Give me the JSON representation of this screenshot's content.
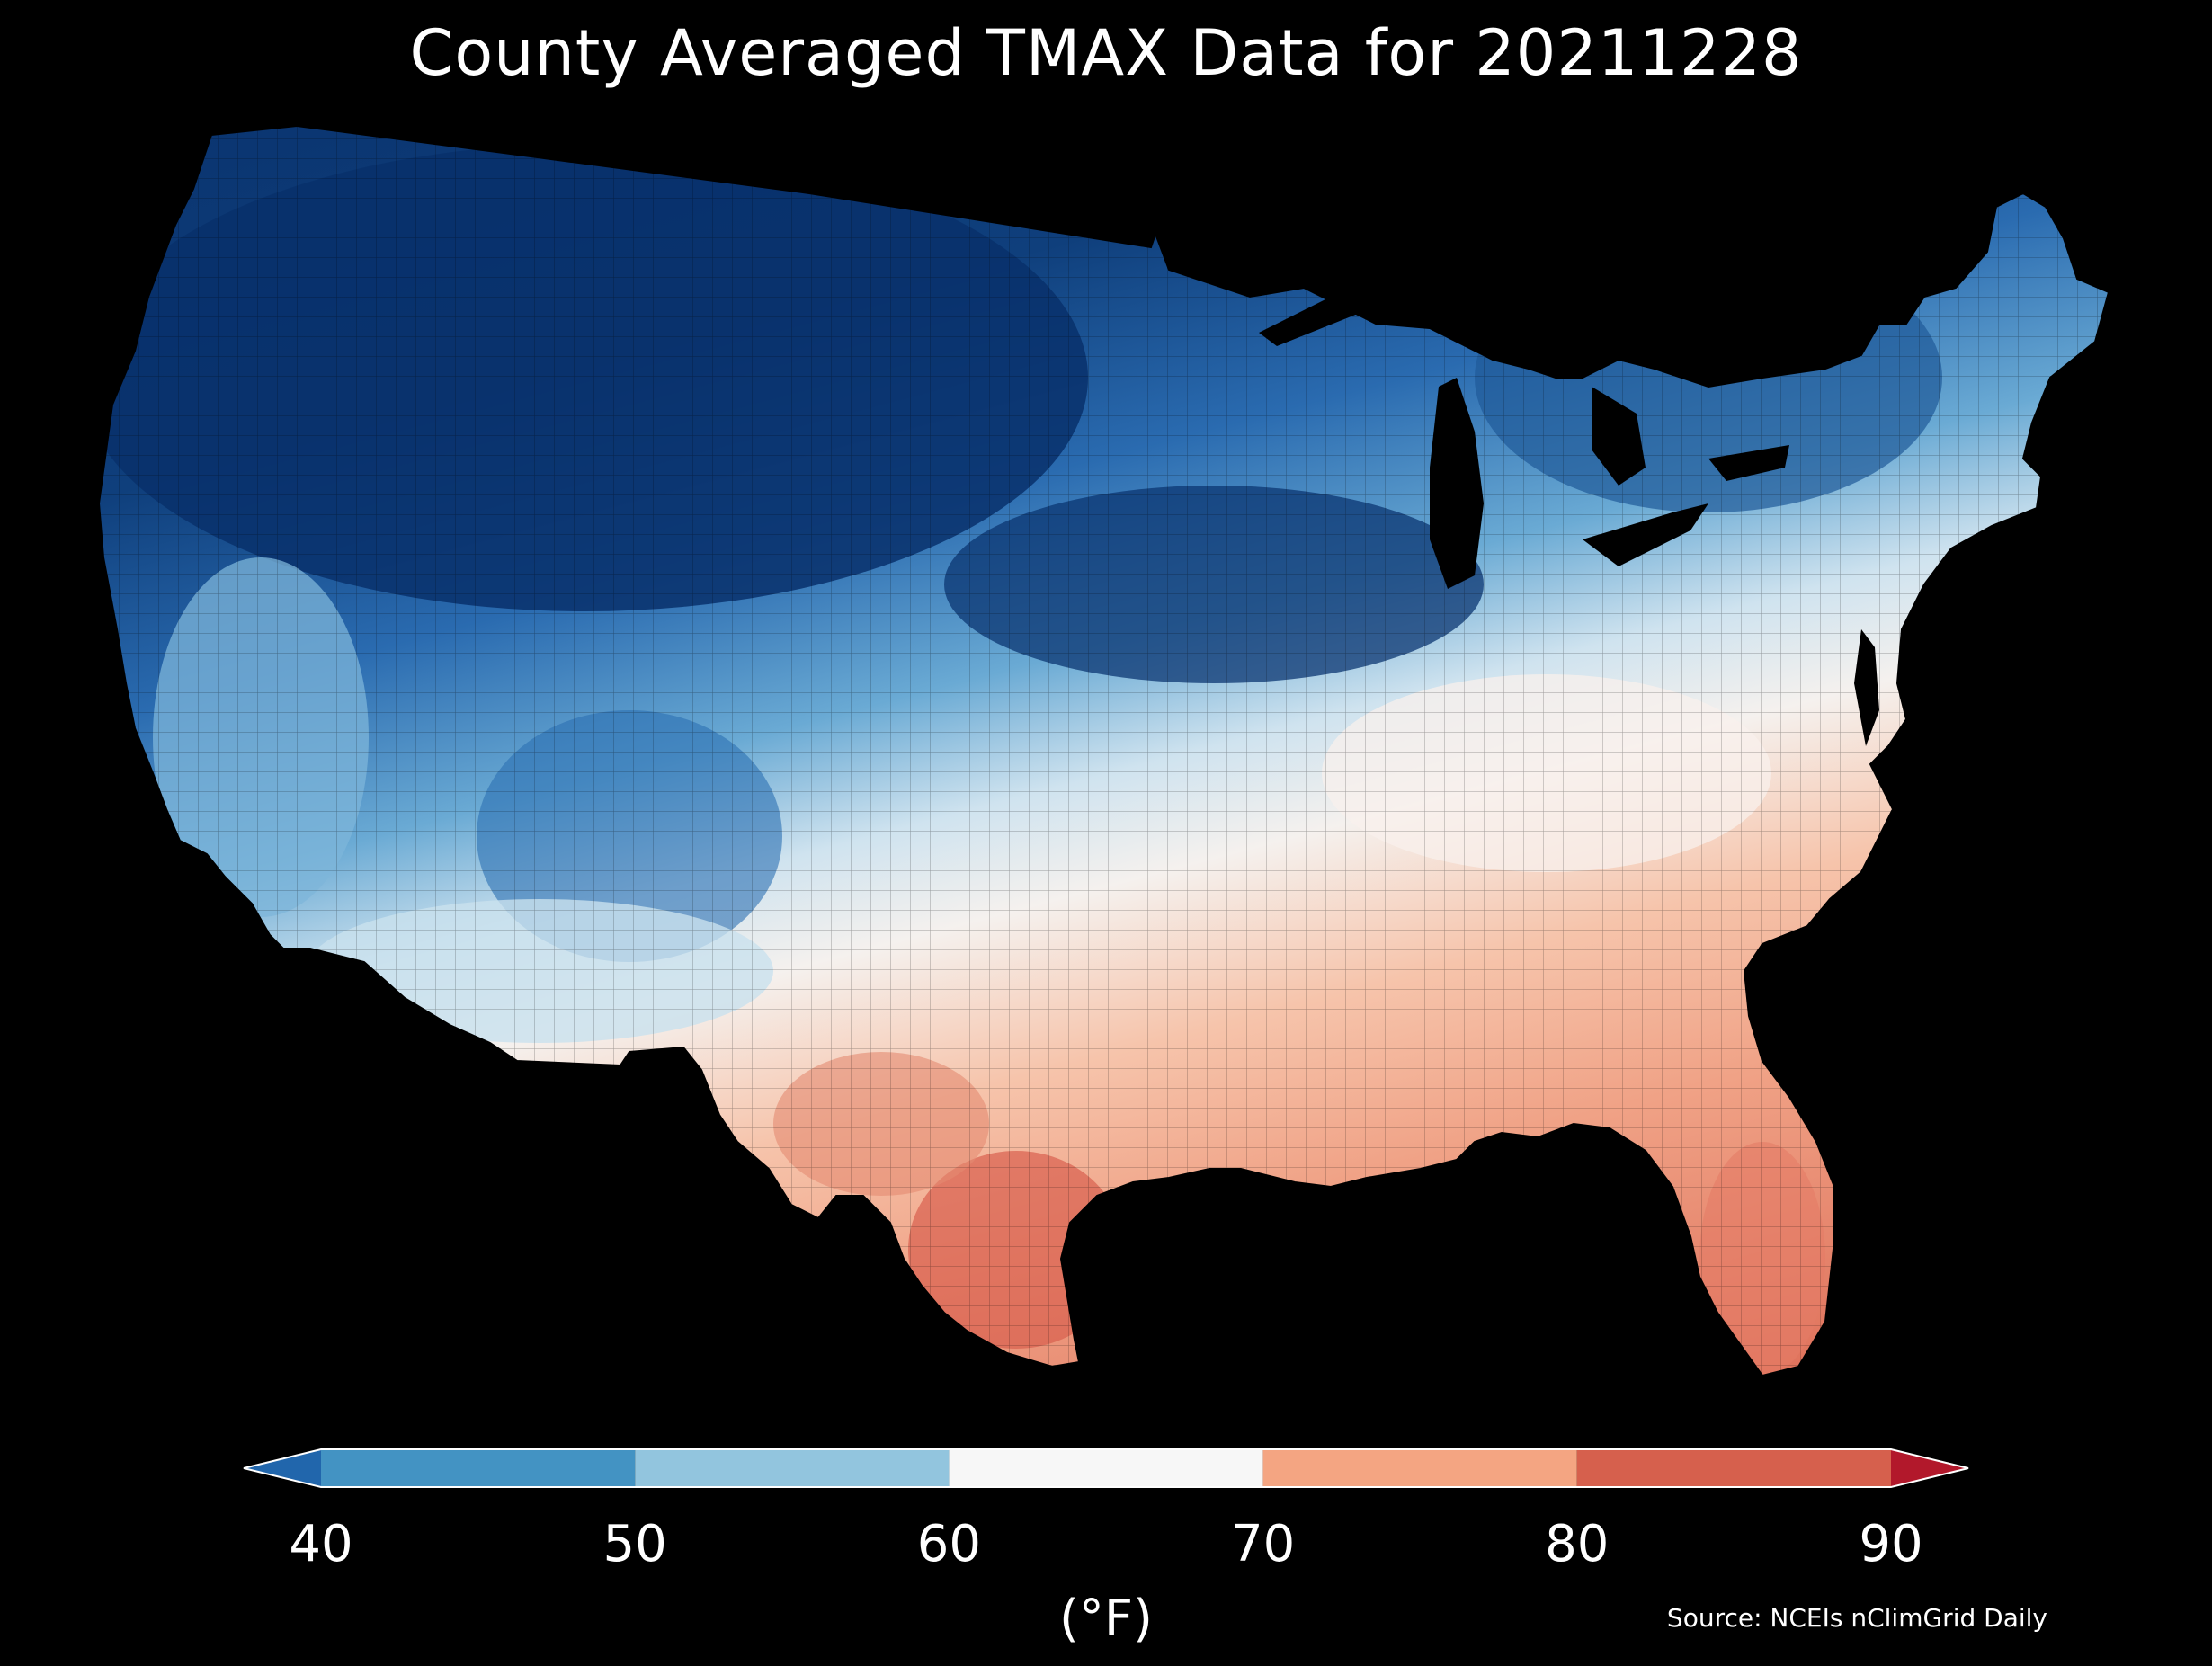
{
  "title": "County Averaged TMAX Data for 20211228",
  "colorbar": {
    "ticks": [
      "40",
      "50",
      "60",
      "70",
      "80",
      "90"
    ],
    "units": "(°F)",
    "bins": [
      {
        "from": null,
        "to": 40,
        "color": "#2166ac"
      },
      {
        "from": 40,
        "to": 50,
        "color": "#4393c3"
      },
      {
        "from": 50,
        "to": 60,
        "color": "#92c5de"
      },
      {
        "from": 60,
        "to": 70,
        "color": "#f7f7f7"
      },
      {
        "from": 70,
        "to": 80,
        "color": "#f4a582"
      },
      {
        "from": 80,
        "to": 90,
        "color": "#d6604d"
      },
      {
        "from": 90,
        "to": null,
        "color": "#b2182b"
      }
    ],
    "extend": "both"
  },
  "source": "Source: NCEIs nClimGrid Daily",
  "map": {
    "region": "Contiguous United States",
    "variable": "TMAX",
    "date": "20211228",
    "regional_colors": {
      "north_plains_rockies": "#08306b",
      "northwest_interior": "#0d3a75",
      "great_lakes_midwest": "#1b4f8a",
      "northeast": "#225e9d",
      "central_plains": "#3a7fbc",
      "california_coast": "#6aaad4",
      "desert_southwest": "#c6e0ee",
      "mid_atlantic_ohio_valley": "#e7eff5",
      "tennessee_kentucky": "#f7efea",
      "gulf_states": "#f2a98c",
      "texas_south": "#e27c66",
      "florida": "#ec927a"
    }
  }
}
